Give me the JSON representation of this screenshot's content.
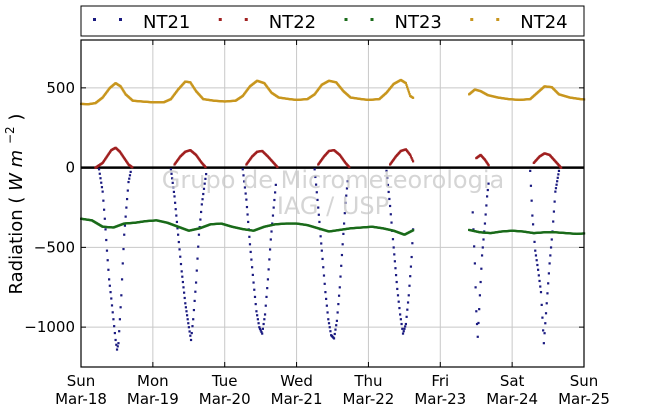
{
  "chart_data": {
    "type": "scatter",
    "ylabel": "Radiation",
    "ylabel_unit_main": "W",
    "ylabel_unit_sub": "m",
    "ylabel_unit_exp": "−2",
    "ylim": [
      -1250,
      800
    ],
    "xlim": [
      0,
      7
    ],
    "yticks": [
      -1000,
      -500,
      0,
      500
    ],
    "ytick_labels": [
      "−1000",
      "−500",
      "0",
      "500"
    ],
    "xticks": [
      {
        "x": 0,
        "day": "Sun",
        "date": "Mar-18"
      },
      {
        "x": 1,
        "day": "Mon",
        "date": "Mar-19"
      },
      {
        "x": 2,
        "day": "Tue",
        "date": "Mar-20"
      },
      {
        "x": 3,
        "day": "Wed",
        "date": "Mar-21"
      },
      {
        "x": 4,
        "day": "Thu",
        "date": "Mar-22"
      },
      {
        "x": 5,
        "day": "Fri",
        "date": "Mar-23"
      },
      {
        "x": 6,
        "day": "Sat",
        "date": "Mar-24"
      },
      {
        "x": 7,
        "day": "Sun",
        "date": "Mar-25"
      }
    ],
    "grid": true,
    "legend_position": "top",
    "series": [
      {
        "name": "NT21",
        "color": "#1a1a80",
        "points": [
          [
            0.25,
            -10
          ],
          [
            0.3,
            -150
          ],
          [
            0.33,
            -320
          ],
          [
            0.36,
            -520
          ],
          [
            0.39,
            -700
          ],
          [
            0.42,
            -820
          ],
          [
            0.45,
            -950
          ],
          [
            0.48,
            -1080
          ],
          [
            0.5,
            -1140
          ],
          [
            0.52,
            -1100
          ],
          [
            0.54,
            -950
          ],
          [
            0.56,
            -800
          ],
          [
            0.58,
            -600
          ],
          [
            0.6,
            -420
          ],
          [
            0.63,
            -250
          ],
          [
            0.66,
            -90
          ],
          [
            0.7,
            -5
          ],
          [
            1.25,
            -10
          ],
          [
            1.3,
            -180
          ],
          [
            1.35,
            -420
          ],
          [
            1.4,
            -650
          ],
          [
            1.45,
            -850
          ],
          [
            1.5,
            -1000
          ],
          [
            1.53,
            -1080
          ],
          [
            1.56,
            -950
          ],
          [
            1.6,
            -720
          ],
          [
            1.64,
            -420
          ],
          [
            1.68,
            -230
          ],
          [
            1.72,
            -100
          ],
          [
            1.75,
            -10
          ],
          [
            2.25,
            -10
          ],
          [
            2.3,
            -200
          ],
          [
            2.35,
            -480
          ],
          [
            2.4,
            -720
          ],
          [
            2.44,
            -900
          ],
          [
            2.48,
            -1000
          ],
          [
            2.52,
            -1040
          ],
          [
            2.56,
            -920
          ],
          [
            2.6,
            -700
          ],
          [
            2.64,
            -450
          ],
          [
            2.68,
            -250
          ],
          [
            2.72,
            -60
          ],
          [
            3.25,
            -10
          ],
          [
            3.3,
            -250
          ],
          [
            3.35,
            -520
          ],
          [
            3.4,
            -780
          ],
          [
            3.44,
            -950
          ],
          [
            3.48,
            -1050
          ],
          [
            3.52,
            -1070
          ],
          [
            3.56,
            -960
          ],
          [
            3.6,
            -750
          ],
          [
            3.64,
            -480
          ],
          [
            3.68,
            -220
          ],
          [
            3.72,
            -40
          ],
          [
            4.25,
            -20
          ],
          [
            4.3,
            -240
          ],
          [
            4.35,
            -500
          ],
          [
            4.4,
            -760
          ],
          [
            4.44,
            -920
          ],
          [
            4.48,
            -1040
          ],
          [
            4.52,
            -980
          ],
          [
            4.56,
            -800
          ],
          [
            4.6,
            -560
          ],
          [
            4.63,
            -300
          ],
          [
            5.45,
            -280
          ],
          [
            5.48,
            -600
          ],
          [
            5.5,
            -900
          ],
          [
            5.52,
            -1060
          ],
          [
            5.55,
            -800
          ],
          [
            5.58,
            -550
          ],
          [
            5.62,
            -350
          ],
          [
            5.65,
            -180
          ],
          [
            5.68,
            -60
          ],
          [
            6.25,
            -20
          ],
          [
            6.28,
            -300
          ],
          [
            6.32,
            -520
          ],
          [
            6.36,
            -640
          ],
          [
            6.4,
            -780
          ],
          [
            6.44,
            -1100
          ],
          [
            6.48,
            -850
          ],
          [
            6.52,
            -600
          ],
          [
            6.56,
            -400
          ],
          [
            6.6,
            -150
          ],
          [
            6.65,
            -20
          ]
        ]
      },
      {
        "name": "NT22",
        "color": "#a02020",
        "points": [
          [
            0.2,
            0
          ],
          [
            0.3,
            30
          ],
          [
            0.36,
            70
          ],
          [
            0.42,
            110
          ],
          [
            0.48,
            125
          ],
          [
            0.54,
            100
          ],
          [
            0.6,
            60
          ],
          [
            0.66,
            20
          ],
          [
            0.72,
            0
          ],
          [
            1.3,
            20
          ],
          [
            1.38,
            70
          ],
          [
            1.45,
            100
          ],
          [
            1.52,
            110
          ],
          [
            1.6,
            80
          ],
          [
            1.68,
            30
          ],
          [
            1.74,
            0
          ],
          [
            2.3,
            20
          ],
          [
            2.38,
            70
          ],
          [
            2.45,
            100
          ],
          [
            2.52,
            105
          ],
          [
            2.6,
            70
          ],
          [
            2.68,
            30
          ],
          [
            2.74,
            0
          ],
          [
            3.3,
            20
          ],
          [
            3.38,
            70
          ],
          [
            3.45,
            105
          ],
          [
            3.52,
            110
          ],
          [
            3.6,
            80
          ],
          [
            3.68,
            30
          ],
          [
            3.74,
            0
          ],
          [
            4.3,
            20
          ],
          [
            4.38,
            70
          ],
          [
            4.45,
            105
          ],
          [
            4.52,
            115
          ],
          [
            4.58,
            80
          ],
          [
            4.63,
            30
          ],
          [
            5.5,
            60
          ],
          [
            5.56,
            80
          ],
          [
            5.62,
            50
          ],
          [
            5.68,
            10
          ],
          [
            6.3,
            30
          ],
          [
            6.38,
            70
          ],
          [
            6.45,
            90
          ],
          [
            6.52,
            80
          ],
          [
            6.6,
            40
          ],
          [
            6.68,
            0
          ]
        ]
      },
      {
        "name": "NT23",
        "color": "#1a6b1a",
        "points": [
          [
            0.0,
            -320
          ],
          [
            0.15,
            -330
          ],
          [
            0.3,
            -370
          ],
          [
            0.45,
            -375
          ],
          [
            0.6,
            -350
          ],
          [
            0.75,
            -345
          ],
          [
            0.9,
            -335
          ],
          [
            1.05,
            -330
          ],
          [
            1.2,
            -345
          ],
          [
            1.35,
            -370
          ],
          [
            1.5,
            -395
          ],
          [
            1.65,
            -380
          ],
          [
            1.8,
            -355
          ],
          [
            1.95,
            -350
          ],
          [
            2.1,
            -370
          ],
          [
            2.25,
            -385
          ],
          [
            2.4,
            -395
          ],
          [
            2.55,
            -370
          ],
          [
            2.7,
            -355
          ],
          [
            2.85,
            -350
          ],
          [
            3.0,
            -350
          ],
          [
            3.15,
            -360
          ],
          [
            3.3,
            -380
          ],
          [
            3.45,
            -400
          ],
          [
            3.6,
            -390
          ],
          [
            3.75,
            -380
          ],
          [
            3.9,
            -375
          ],
          [
            4.05,
            -370
          ],
          [
            4.2,
            -380
          ],
          [
            4.35,
            -395
          ],
          [
            4.5,
            -420
          ],
          [
            4.63,
            -390
          ],
          [
            5.4,
            -390
          ],
          [
            5.55,
            -405
          ],
          [
            5.7,
            -410
          ],
          [
            5.85,
            -400
          ],
          [
            6.0,
            -395
          ],
          [
            6.15,
            -400
          ],
          [
            6.3,
            -410
          ],
          [
            6.45,
            -405
          ],
          [
            6.6,
            -405
          ],
          [
            6.75,
            -410
          ],
          [
            6.9,
            -415
          ],
          [
            7.0,
            -412
          ]
        ]
      },
      {
        "name": "NT24",
        "color": "#c8961e",
        "points": [
          [
            0.0,
            400
          ],
          [
            0.1,
            398
          ],
          [
            0.2,
            405
          ],
          [
            0.3,
            440
          ],
          [
            0.4,
            500
          ],
          [
            0.48,
            530
          ],
          [
            0.55,
            510
          ],
          [
            0.62,
            460
          ],
          [
            0.72,
            420
          ],
          [
            0.85,
            415
          ],
          [
            1.0,
            410
          ],
          [
            1.15,
            410
          ],
          [
            1.25,
            430
          ],
          [
            1.35,
            490
          ],
          [
            1.45,
            540
          ],
          [
            1.52,
            535
          ],
          [
            1.6,
            480
          ],
          [
            1.7,
            430
          ],
          [
            1.85,
            420
          ],
          [
            2.0,
            415
          ],
          [
            2.15,
            420
          ],
          [
            2.25,
            450
          ],
          [
            2.35,
            510
          ],
          [
            2.45,
            545
          ],
          [
            2.55,
            530
          ],
          [
            2.65,
            470
          ],
          [
            2.75,
            440
          ],
          [
            2.9,
            430
          ],
          [
            3.0,
            425
          ],
          [
            3.15,
            430
          ],
          [
            3.25,
            460
          ],
          [
            3.35,
            520
          ],
          [
            3.45,
            545
          ],
          [
            3.55,
            535
          ],
          [
            3.65,
            480
          ],
          [
            3.75,
            440
          ],
          [
            3.9,
            430
          ],
          [
            4.0,
            425
          ],
          [
            4.15,
            430
          ],
          [
            4.25,
            470
          ],
          [
            4.35,
            525
          ],
          [
            4.45,
            550
          ],
          [
            4.52,
            530
          ],
          [
            4.58,
            450
          ],
          [
            4.63,
            435
          ],
          [
            5.4,
            460
          ],
          [
            5.48,
            490
          ],
          [
            5.56,
            480
          ],
          [
            5.66,
            455
          ],
          [
            5.8,
            440
          ],
          [
            5.95,
            430
          ],
          [
            6.1,
            425
          ],
          [
            6.25,
            430
          ],
          [
            6.35,
            470
          ],
          [
            6.45,
            510
          ],
          [
            6.55,
            505
          ],
          [
            6.65,
            460
          ],
          [
            6.8,
            440
          ],
          [
            6.95,
            430
          ],
          [
            7.0,
            428
          ]
        ]
      }
    ]
  },
  "watermark": {
    "line1": "Grupo de Micrometeorologia",
    "line2": "IAG / USP"
  }
}
